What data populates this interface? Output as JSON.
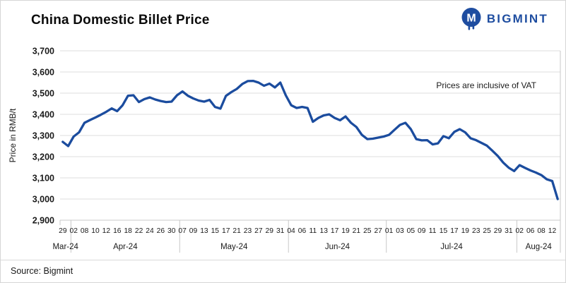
{
  "header": {
    "title": "China Domestic Billet Price",
    "brand": "BIGMINT",
    "brand_color": "#1e4da0"
  },
  "annotation": "Prices are inclusive of VAT",
  "footer": {
    "source": "Source: Bigmint"
  },
  "colors": {
    "line": "#1b4c9e",
    "grid": "#dcdcdc",
    "axis": "#c8c8c8",
    "text": "#1a1a1a"
  },
  "chart_data": {
    "type": "line",
    "title": "China Domestic Billet Price",
    "xlabel": "",
    "ylabel": "Price in RMB/t",
    "ylim": [
      2900,
      3700
    ],
    "ytick_step": 100,
    "grid": true,
    "legend": "none",
    "series_name": "Billet price (RMB/t, incl. VAT)",
    "note": "day_labels mark every second value in each month group",
    "months": [
      {
        "label": "Mar-24",
        "day_labels": [
          "29"
        ],
        "values": [
          3270,
          3250
        ]
      },
      {
        "label": "Apr-24",
        "day_labels": [
          "02",
          "08",
          "10",
          "12",
          "16",
          "18",
          "22",
          "24",
          "26",
          "30"
        ],
        "values": [
          3295,
          3315,
          3360,
          3373,
          3385,
          3398,
          3412,
          3428,
          3415,
          3443,
          3488,
          3490,
          3458,
          3472,
          3480,
          3470,
          3463,
          3458,
          3460,
          3490
        ]
      },
      {
        "label": "May-24",
        "day_labels": [
          "07",
          "09",
          "13",
          "15",
          "17",
          "21",
          "23",
          "27",
          "29",
          "31"
        ],
        "values": [
          3508,
          3488,
          3475,
          3465,
          3460,
          3468,
          3435,
          3427,
          3487,
          3505,
          3520,
          3543,
          3557,
          3558,
          3550,
          3535,
          3545,
          3527,
          3550,
          3490
        ]
      },
      {
        "label": "Jun-24",
        "day_labels": [
          "04",
          "06",
          "11",
          "13",
          "17",
          "19",
          "21",
          "25",
          "27"
        ],
        "values": [
          3443,
          3430,
          3435,
          3430,
          3365,
          3383,
          3395,
          3400,
          3383,
          3372,
          3390,
          3360,
          3340,
          3303,
          3283,
          3285,
          3290,
          3295
        ]
      },
      {
        "label": "Jul-24",
        "day_labels": [
          "01",
          "03",
          "05",
          "09",
          "11",
          "15",
          "17",
          "19",
          "23",
          "25",
          "29",
          "31"
        ],
        "values": [
          3303,
          3327,
          3350,
          3360,
          3330,
          3283,
          3277,
          3278,
          3258,
          3263,
          3297,
          3287,
          3317,
          3330,
          3315,
          3287,
          3278,
          3265,
          3252,
          3228,
          3203,
          3172,
          3148,
          3132
        ]
      },
      {
        "label": "Aug-24",
        "day_labels": [
          "02",
          "06",
          "08",
          "12"
        ],
        "values": [
          3160,
          3147,
          3135,
          3125,
          3113,
          3093,
          3085,
          3000
        ]
      }
    ]
  }
}
